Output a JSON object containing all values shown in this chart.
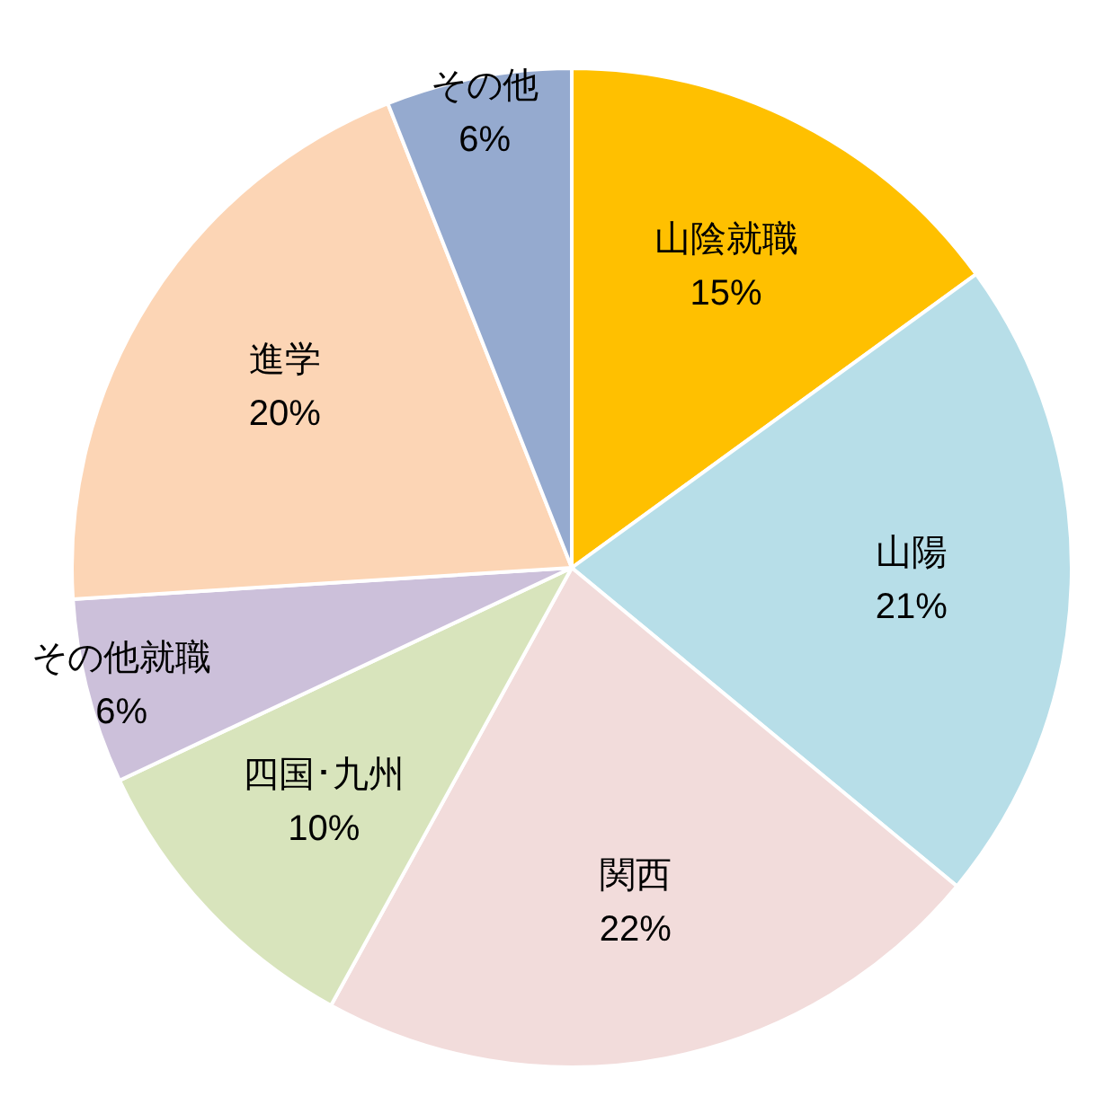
{
  "chart_data": {
    "type": "pie",
    "categories": [
      "山陰就職",
      "山陽",
      "関西",
      "四国･九州",
      "その他就職",
      "進学",
      "その他"
    ],
    "values": [
      15,
      21,
      22,
      10,
      6,
      20,
      6
    ],
    "colors": [
      "#ffc000",
      "#b7dee8",
      "#f2dcdb",
      "#d8e4bc",
      "#ccc0da",
      "#fcd5b5",
      "#95aacf"
    ],
    "value_labels": [
      "15%",
      "21%",
      "22%",
      "10%",
      "6%",
      "20%",
      "6%"
    ]
  }
}
